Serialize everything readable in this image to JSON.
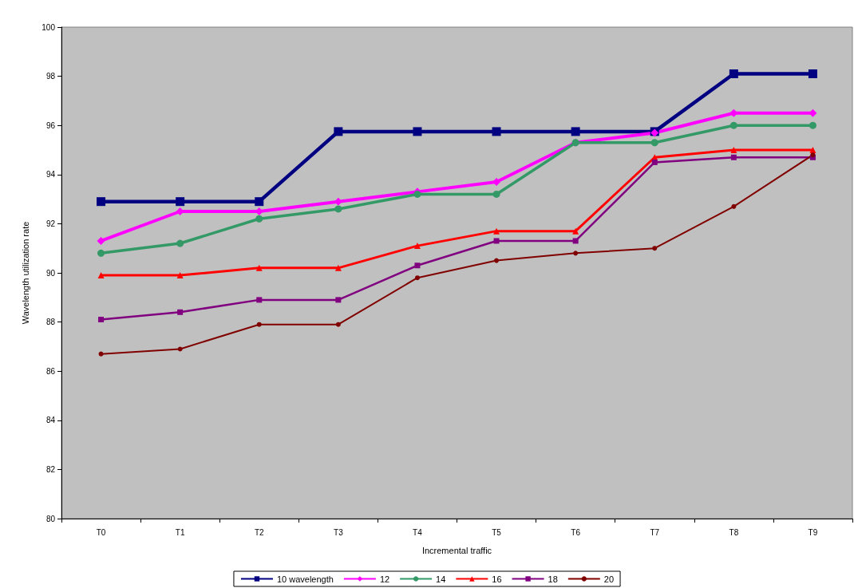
{
  "chart_data": {
    "type": "line",
    "xlabel": "Incremental traffic",
    "ylabel": "Wavelength utilization rate",
    "categories": [
      "T0",
      "T1",
      "T2",
      "T3",
      "T4",
      "T5",
      "T6",
      "T7",
      "T8",
      "T9"
    ],
    "ylim": [
      80,
      100
    ],
    "yticks": [
      80,
      82,
      84,
      86,
      88,
      90,
      92,
      94,
      96,
      98,
      100
    ],
    "grid": false,
    "legend": "bottom",
    "line_style": "solid",
    "series": [
      {
        "name": "10 wavelength",
        "color": "#000080",
        "marker": "square",
        "values": [
          92.9,
          92.9,
          92.9,
          95.75,
          95.75,
          95.75,
          95.75,
          95.75,
          98.1,
          98.1
        ]
      },
      {
        "name": "12",
        "color": "#ff00ff",
        "marker": "diamond",
        "values": [
          91.3,
          92.5,
          92.5,
          92.9,
          93.3,
          93.7,
          95.3,
          95.7,
          96.5,
          96.5
        ]
      },
      {
        "name": "14",
        "color": "#339966",
        "marker": "circle",
        "values": [
          90.8,
          91.2,
          92.2,
          92.6,
          93.2,
          93.2,
          95.3,
          95.3,
          96.0,
          96.0
        ]
      },
      {
        "name": "16",
        "color": "#ff0000",
        "marker": "triangle",
        "values": [
          89.9,
          89.9,
          90.2,
          90.2,
          91.1,
          91.7,
          91.7,
          94.7,
          95.0,
          95.0
        ]
      },
      {
        "name": "18",
        "color": "#800080",
        "marker": "square",
        "values": [
          88.1,
          88.4,
          88.9,
          88.9,
          90.3,
          91.3,
          91.3,
          94.5,
          94.7,
          94.7
        ]
      },
      {
        "name": "20",
        "color": "#800000",
        "marker": "circle",
        "values": [
          86.7,
          86.9,
          87.9,
          87.9,
          89.8,
          90.5,
          90.8,
          91.0,
          92.7,
          94.8
        ]
      }
    ]
  }
}
